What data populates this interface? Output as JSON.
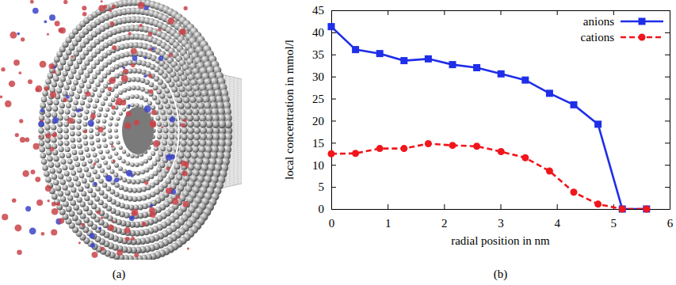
{
  "image_panel": {
    "caption": "(a)"
  },
  "chart_data": {
    "type": "line",
    "caption": "(b)",
    "x_label": "radial position in nm",
    "y_label": "local concentration in mmol/l",
    "x": [
      0,
      0.43,
      0.86,
      1.29,
      1.72,
      2.15,
      2.58,
      3.01,
      3.44,
      3.87,
      4.3,
      4.73,
      5.16,
      5.59
    ],
    "series": [
      {
        "name": "anions",
        "color": "#1f2ee8",
        "marker": "square",
        "line_style": "solid",
        "values": [
          41.3,
          36.1,
          35.2,
          33.6,
          34.0,
          32.7,
          32.0,
          30.6,
          29.2,
          26.2,
          23.6,
          19.2,
          0,
          0
        ]
      },
      {
        "name": "cations",
        "color": "#f0161c",
        "marker": "circle",
        "line_style": "dashed",
        "values": [
          12.5,
          12.6,
          13.7,
          13.7,
          14.8,
          14.4,
          14.2,
          13.0,
          11.6,
          8.6,
          3.8,
          1.1,
          0,
          0
        ]
      }
    ],
    "xlim": [
      0,
      6
    ],
    "xticks": [
      0,
      1,
      2,
      3,
      4,
      5,
      6
    ],
    "ylim": [
      0,
      45
    ],
    "yticks": [
      0,
      5,
      10,
      15,
      20,
      25,
      30,
      35,
      40,
      45
    ],
    "grid": false,
    "legend": "upper right"
  }
}
